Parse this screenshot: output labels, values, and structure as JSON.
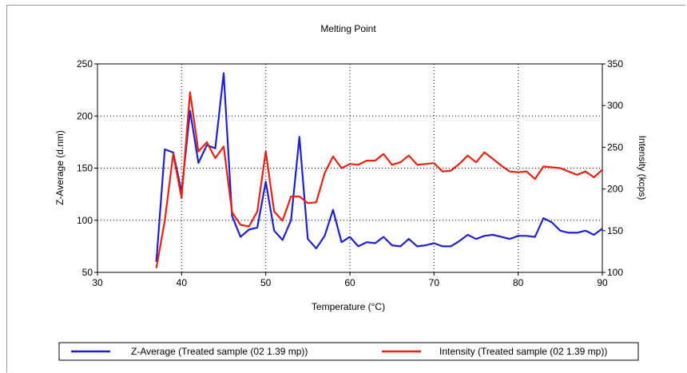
{
  "chart_data": {
    "type": "line",
    "title": "Melting Point",
    "xlabel": "Temperature (°C)",
    "ylabel_left": "Z-Average (d.nm)",
    "ylabel_right": "Intensity (kcps)",
    "xlim": [
      30,
      90
    ],
    "ylim_left": [
      50,
      250
    ],
    "ylim_right": [
      100,
      350
    ],
    "x_ticks": [
      "30",
      "40",
      "50",
      "60",
      "70",
      "80",
      "90"
    ],
    "y_ticks_left": [
      "50",
      "100",
      "150",
      "200",
      "250"
    ],
    "y_ticks_right": [
      "100",
      "150",
      "200",
      "250",
      "300",
      "350"
    ],
    "grid": true,
    "legend_position": "bottom",
    "x": [
      37,
      38,
      39,
      40,
      41,
      42,
      43,
      44,
      45,
      46,
      47,
      48,
      49,
      50,
      51,
      52,
      53,
      54,
      55,
      56,
      57,
      58,
      59,
      60,
      61,
      62,
      63,
      64,
      65,
      66,
      67,
      68,
      69,
      70,
      71,
      72,
      73,
      74,
      75,
      76,
      77,
      78,
      79,
      80,
      81,
      82,
      83,
      84,
      85,
      86,
      87,
      88,
      89,
      90
    ],
    "series": [
      {
        "name": "Z-Average (Treated sample (02 1.39 mp))",
        "axis": "left",
        "color": "#1f1fd0",
        "values": [
          60,
          168,
          165,
          127,
          205,
          155,
          172,
          169,
          241,
          104,
          84,
          91,
          93,
          137,
          90,
          81,
          100,
          180,
          82,
          73,
          85,
          110,
          79,
          84,
          75,
          79,
          78,
          84,
          76,
          75,
          82,
          75,
          76,
          78,
          75,
          75,
          80,
          86,
          82,
          85,
          86,
          84,
          82,
          85,
          85,
          84,
          102,
          98,
          90,
          88,
          88,
          90,
          86,
          92
        ]
      },
      {
        "name": "Intensity (Treated sample (02 1.39 mp))",
        "axis": "right",
        "color": "#e82010",
        "values": [
          105,
          162,
          242,
          189,
          316,
          245,
          256,
          237,
          251,
          172,
          157,
          155,
          173,
          245,
          173,
          162,
          191,
          191,
          183,
          184,
          219,
          239,
          225,
          230,
          229,
          234,
          234,
          242,
          229,
          232,
          240,
          229,
          230,
          231,
          221,
          222,
          230,
          240,
          232,
          244,
          236,
          228,
          221,
          220,
          221,
          212,
          227,
          226,
          225,
          221,
          217,
          221,
          214,
          223
        ]
      }
    ]
  }
}
